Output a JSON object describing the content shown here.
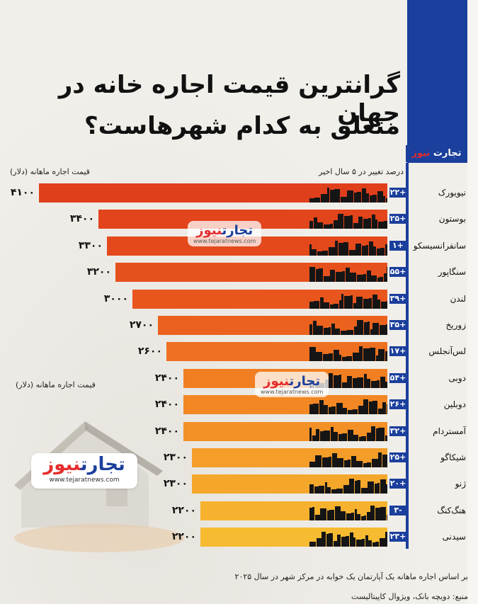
{
  "title_line1": "گرانترین قیمت اجاره خانه در جهان",
  "title_line2": "متعلق به کدام شهرهاست؟",
  "brand": {
    "name_a": "تجارت",
    "name_b": "نیوز",
    "url": "www.tejaratnews.com"
  },
  "colors": {
    "blue": "#1b3f9c",
    "red": "#e52d2d"
  },
  "headers": {
    "change": "درصد تغییر در ۵ سال اخیر",
    "rent": "قیمت اجاره ماهانه (دلار)",
    "rent_mid": "قیمت اجاره ماهانه (دلار)"
  },
  "chart_data": {
    "type": "bar",
    "orientation": "horizontal",
    "categories": [
      "نیویورک",
      "بوستون",
      "سانفرانسیسکو",
      "سنگاپور",
      "لندن",
      "زوریخ",
      "لس‌آنجلس",
      "دوبی",
      "دوبلین",
      "آمستردام",
      "شیکاگو",
      "ژنو",
      "هنگ‌کنگ",
      "سیدنی"
    ],
    "values": [
      4100,
      3400,
      3300,
      3200,
      3000,
      2700,
      2600,
      2400,
      2400,
      2400,
      2300,
      2300,
      2200,
      2200
    ],
    "value_labels": [
      "۴۱۰۰",
      "۳۴۰۰",
      "۳۳۰۰",
      "۳۲۰۰",
      "۳۰۰۰",
      "۲۷۰۰",
      "۲۶۰۰",
      "۲۴۰۰",
      "۲۴۰۰",
      "۲۴۰۰",
      "۲۳۰۰",
      "۲۳۰۰",
      "۲۲۰۰",
      "۲۲۰۰"
    ],
    "change_labels": [
      "+۲۲",
      "+۲۵",
      "+۱",
      "+۵۵",
      "+۳۹",
      "+۳۵",
      "+۱۷",
      "+۵۴",
      "+۲۶",
      "+۳۲",
      "+۲۵",
      "+۲۰",
      "-۳",
      "+۲۳"
    ],
    "change_values": [
      22,
      25,
      1,
      55,
      39,
      35,
      17,
      54,
      26,
      32,
      25,
      20,
      -3,
      23
    ],
    "bar_colors": [
      "#e03f1c",
      "#e2441c",
      "#e4491c",
      "#e6501d",
      "#e8561e",
      "#eb621f",
      "#ee7020",
      "#f17f22",
      "#f28724",
      "#f39026",
      "#f49d29",
      "#f5a72b",
      "#f6b22e",
      "#f7bb31"
    ]
  },
  "footnotes": [
    "بر اساس اجاره ماهانه یک آپارتمان یک خوابه در مرکز شهر در سال ۲۰۲۵",
    "منبع: دویچه بانک، ویژوال کاپیتالیست"
  ]
}
